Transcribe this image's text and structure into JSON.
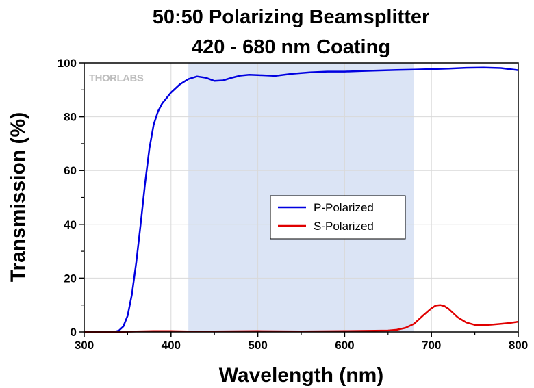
{
  "chart_data": {
    "type": "line",
    "title": [
      "50:50 Polarizing Beamsplitter",
      "420 - 680 nm Coating"
    ],
    "xlabel": "Wavelength (nm)",
    "ylabel": "Transmission (%)",
    "xlim": [
      300,
      800
    ],
    "ylim": [
      0,
      100
    ],
    "xticks": [
      300,
      400,
      500,
      600,
      700,
      800
    ],
    "yticks": [
      0,
      20,
      40,
      60,
      80,
      100
    ],
    "grid": true,
    "legend": "center-right",
    "watermark": "THORLABS",
    "shaded_region": {
      "x": [
        420,
        680
      ],
      "color": "#dbe4f5"
    },
    "series": [
      {
        "name": "P-Polarized",
        "color": "#0000e0",
        "x": [
          300,
          335,
          340,
          345,
          350,
          355,
          360,
          365,
          370,
          375,
          380,
          385,
          390,
          395,
          400,
          410,
          420,
          430,
          440,
          450,
          460,
          470,
          480,
          490,
          500,
          520,
          540,
          560,
          580,
          600,
          620,
          640,
          660,
          680,
          700,
          720,
          740,
          760,
          780,
          800
        ],
        "y": [
          0,
          0,
          0.5,
          2,
          6,
          14,
          26,
          40,
          55,
          68,
          77,
          82,
          85,
          87,
          89,
          92,
          94,
          95,
          94.5,
          93.3,
          93.5,
          94.5,
          95.3,
          95.6,
          95.5,
          95.2,
          96,
          96.5,
          96.8,
          96.8,
          97,
          97.2,
          97.4,
          97.5,
          97.7,
          97.9,
          98.2,
          98.3,
          98.1,
          97.3
        ]
      },
      {
        "name": "S-Polarized",
        "color": "#e00000",
        "x": [
          300,
          340,
          360,
          380,
          400,
          420,
          450,
          500,
          550,
          600,
          650,
          660,
          670,
          680,
          690,
          700,
          705,
          710,
          715,
          720,
          730,
          740,
          750,
          760,
          770,
          780,
          790,
          800
        ],
        "y": [
          0,
          0,
          0.2,
          0.3,
          0.3,
          0.2,
          0.2,
          0.3,
          0.2,
          0.3,
          0.5,
          0.8,
          1.5,
          3,
          6,
          8.8,
          9.8,
          10,
          9.6,
          8.5,
          5.5,
          3.5,
          2.6,
          2.5,
          2.7,
          3,
          3.3,
          3.8
        ]
      }
    ]
  }
}
